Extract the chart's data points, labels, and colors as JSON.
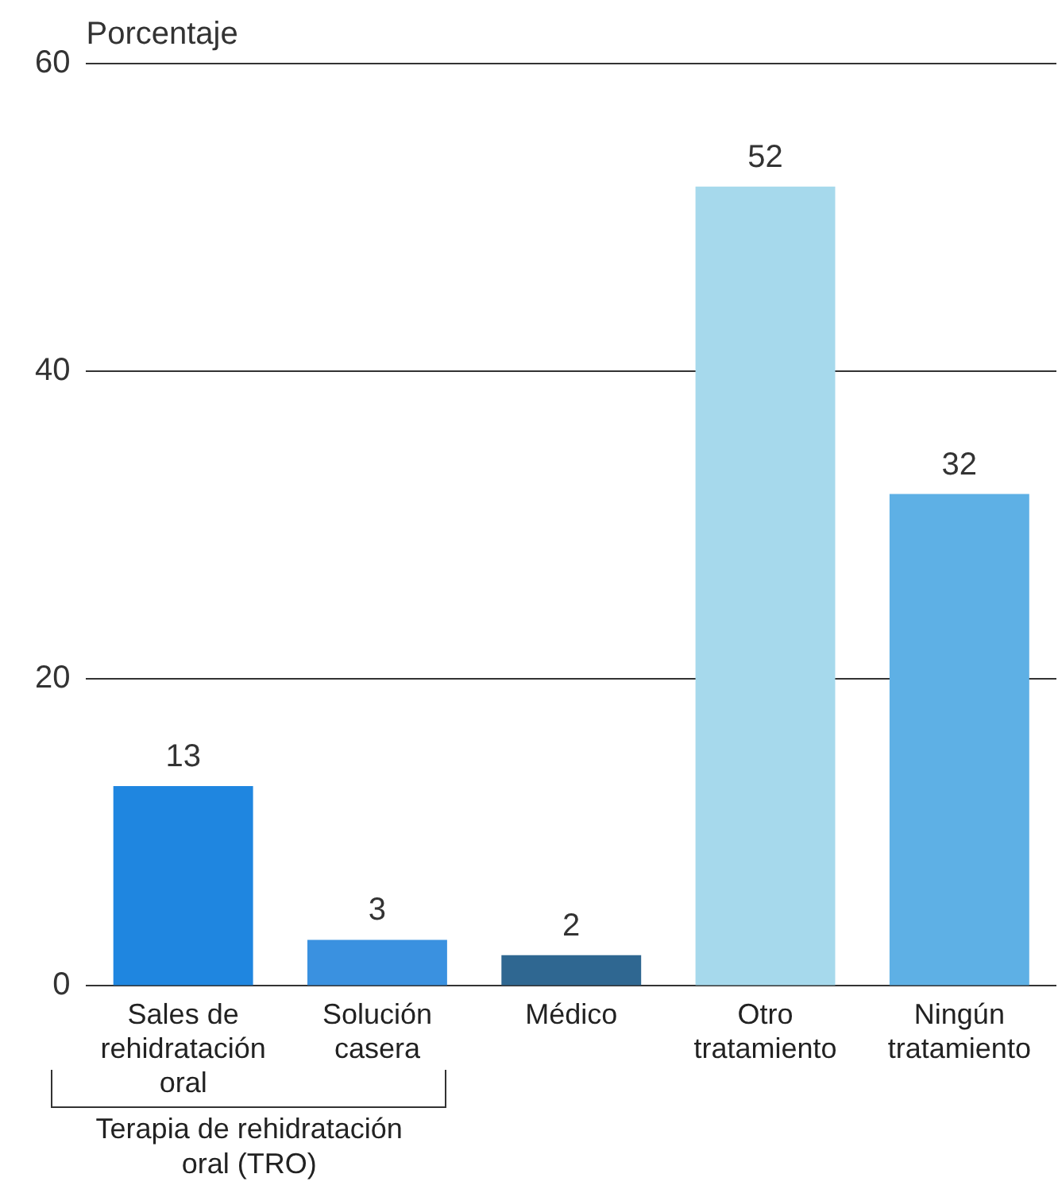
{
  "chart_data": {
    "type": "bar",
    "ylabel": "Porcentaje",
    "categories": [
      "Sales de\nrehidratación\noral",
      "Solución\ncasera",
      "Médico",
      "Otro\ntratamiento",
      "Ningún\ntratamiento"
    ],
    "values": [
      13,
      3,
      2,
      52,
      32
    ],
    "colors": [
      "#1f86e0",
      "#3a91e0",
      "#2f6791",
      "#a6d9ec",
      "#5eb0e5"
    ],
    "ylim": [
      0,
      60
    ],
    "yticks": [
      0,
      20,
      40,
      60
    ],
    "grid": "y",
    "data_labels": true,
    "annotations": [
      "Terapia de rehidratación\noral (TRO)"
    ]
  }
}
